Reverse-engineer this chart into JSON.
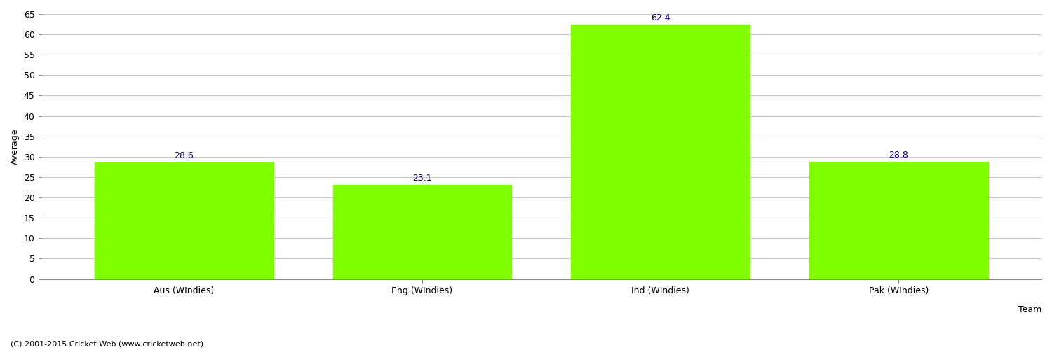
{
  "categories": [
    "Aus (WIndies)",
    "Eng (WIndies)",
    "Ind (WIndies)",
    "Pak (WIndies)"
  ],
  "values": [
    28.6,
    23.1,
    62.4,
    28.8
  ],
  "bar_color": "#7fff00",
  "bar_edge_color": "#7fff00",
  "value_label_color": "#00008b",
  "value_label_fontsize": 9,
  "xlabel": "Team",
  "ylabel": "Average",
  "ylim": [
    0,
    65
  ],
  "yticks": [
    0,
    5,
    10,
    15,
    20,
    25,
    30,
    35,
    40,
    45,
    50,
    55,
    60,
    65
  ],
  "grid_color": "#c8c8c8",
  "background_color": "#ffffff",
  "footer_text": "(C) 2001-2015 Cricket Web (www.cricketweb.net)",
  "footer_fontsize": 8,
  "footer_color": "#000000",
  "axis_label_fontsize": 9,
  "tick_fontsize": 9,
  "bar_width": 0.75
}
